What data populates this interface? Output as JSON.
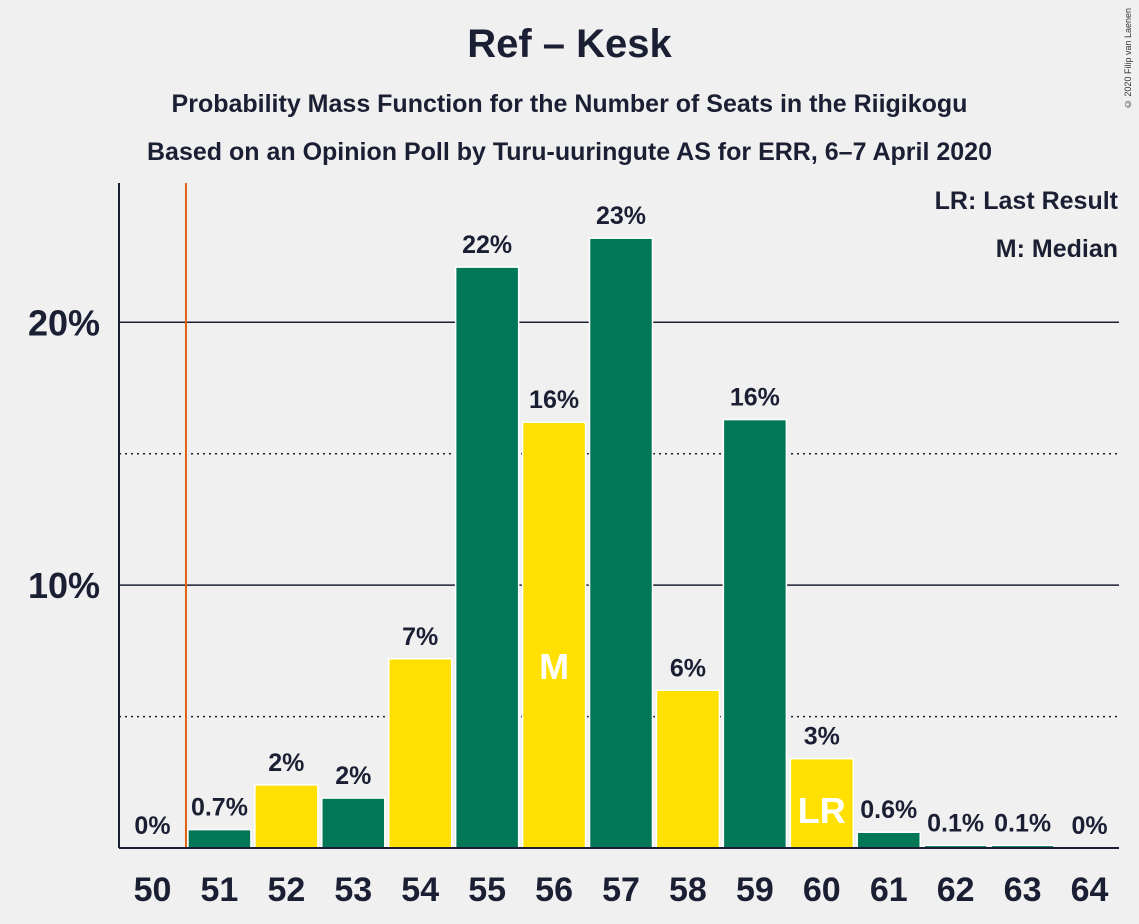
{
  "header": {
    "title": "Ref – Kesk",
    "subtitle_1": "Probability Mass Function for the Number of Seats in the Riigikogu",
    "subtitle_2": "Based on an Opinion Poll by Turu-uuringute AS for ERR, 6–7 April 2020",
    "copyright": "© 2020 Filip van Laenen"
  },
  "legend": {
    "last_result": "LR: Last Result",
    "median": "M: Median"
  },
  "colors": {
    "green": "#007757",
    "yellow": "#ffe000",
    "last_result_line": "#e0620d",
    "text": "#1b1f33"
  },
  "chart_data": {
    "type": "bar",
    "categories": [
      "50",
      "51",
      "52",
      "53",
      "54",
      "55",
      "56",
      "57",
      "58",
      "59",
      "60",
      "61",
      "62",
      "63",
      "64"
    ],
    "values": [
      0,
      0.7,
      2.4,
      1.9,
      7.2,
      22.1,
      16.2,
      23.2,
      6.0,
      16.3,
      3.4,
      0.6,
      0.1,
      0.1,
      0
    ],
    "data_labels": [
      "0%",
      "0.7%",
      "2%",
      "2%",
      "7%",
      "22%",
      "16%",
      "23%",
      "6%",
      "16%",
      "3%",
      "0.6%",
      "0.1%",
      "0.1%",
      "0%"
    ],
    "bar_colors": [
      "green",
      "green",
      "yellow",
      "green",
      "yellow",
      "green",
      "yellow",
      "green",
      "yellow",
      "green",
      "yellow",
      "green",
      "green",
      "green",
      "green"
    ],
    "median_category": "56",
    "median_marker": "M",
    "last_result_category": "60",
    "last_result_marker": "LR",
    "last_result_line_at": 50.5,
    "yticks": [
      10,
      20
    ],
    "ytick_labels": [
      "10%",
      "20%"
    ],
    "minor_gridlines": [
      5,
      15
    ],
    "ylim": [
      0,
      25.3
    ],
    "title": "Ref – Kesk",
    "xlabel": "",
    "ylabel": ""
  }
}
